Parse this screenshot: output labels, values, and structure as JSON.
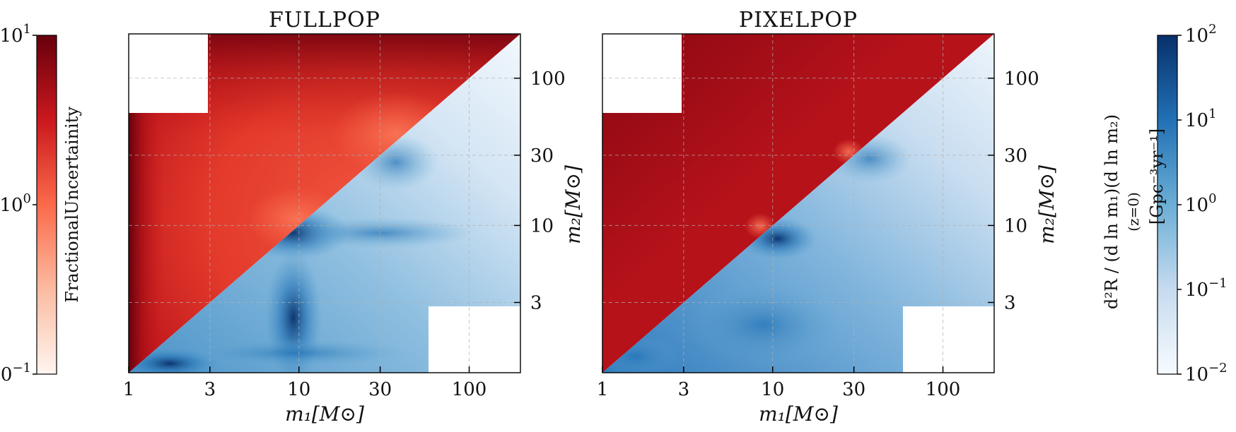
{
  "colorbars": {
    "left": {
      "label": "FractionalUncertainity",
      "scale": "log",
      "range": [
        0.1,
        10
      ],
      "ticks": [
        {
          "value": 10,
          "base": "10",
          "exp": "1"
        },
        {
          "value": 1,
          "base": "10",
          "exp": "0"
        },
        {
          "value": 0.1,
          "base": "0",
          "exp": "−1"
        }
      ],
      "colormap": "Reds"
    },
    "right": {
      "label_main": "d²R / (d ln m₁)(d ln m₂)",
      "label_sub": "(z=0)",
      "label_units": "[Gpc⁻³yr⁻¹]",
      "scale": "log",
      "range": [
        0.01,
        100
      ],
      "ticks": [
        {
          "value": 100,
          "base": "10",
          "exp": "2"
        },
        {
          "value": 10,
          "base": "10",
          "exp": "1"
        },
        {
          "value": 1,
          "base": "10",
          "exp": "0"
        },
        {
          "value": 0.1,
          "base": "10",
          "exp": "−1"
        },
        {
          "value": 0.01,
          "base": "10",
          "exp": "−2"
        }
      ],
      "colormap": "Blues"
    }
  },
  "chart_data": [
    {
      "type": "heatmap",
      "title": "FULLPOP",
      "xlabel": "m₁[M⊙]",
      "ylabel": "m₂[M⊙]",
      "x_scale": "log",
      "y_scale": "log",
      "xlim": [
        1,
        200
      ],
      "ylim": [
        1,
        200
      ],
      "xticks": [
        1,
        3,
        10,
        30,
        100
      ],
      "xtick_labels": [
        "1",
        "3",
        "10",
        "30",
        "100"
      ],
      "yticks": [
        3,
        10,
        30,
        100
      ],
      "ytick_labels": [
        "3",
        "10",
        "30",
        "100"
      ],
      "grid": true,
      "upper_triangle": "fractional uncertainty (Reds)",
      "lower_triangle": "merger rate density (Blues)",
      "lower_triangle_peaks": [
        {
          "m1": 1.5,
          "m2": 1.1,
          "rate_log10": 1.5
        },
        {
          "m1": 10,
          "m2": 9,
          "rate_log10": 1.4
        },
        {
          "m1": 10,
          "m2": 1.3,
          "rate_log10": 1.5
        },
        {
          "m1": 35,
          "m2": 30,
          "rate_log10": 0.6
        }
      ]
    },
    {
      "type": "heatmap",
      "title": "PIXELPOP",
      "xlabel": "m₁[M⊙]",
      "ylabel": "m₂[M⊙]",
      "x_scale": "log",
      "y_scale": "log",
      "xlim": [
        1,
        200
      ],
      "ylim": [
        1,
        200
      ],
      "xticks": [
        1,
        3,
        10,
        30,
        100
      ],
      "xtick_labels": [
        "1",
        "3",
        "10",
        "30",
        "100"
      ],
      "yticks": [
        3,
        10,
        30,
        100
      ],
      "ytick_labels": [
        "3",
        "10",
        "30",
        "100"
      ],
      "grid": true,
      "upper_triangle": "fractional uncertainty (Reds)",
      "lower_triangle": "merger rate density (Blues)",
      "lower_triangle_peaks": [
        {
          "m1": 10,
          "m2": 8,
          "rate_log10": 1.6
        },
        {
          "m1": 30,
          "m2": 27,
          "rate_log10": 0.8
        },
        {
          "m1": 1.5,
          "m2": 1.2,
          "rate_log10": 1.1
        }
      ]
    }
  ]
}
